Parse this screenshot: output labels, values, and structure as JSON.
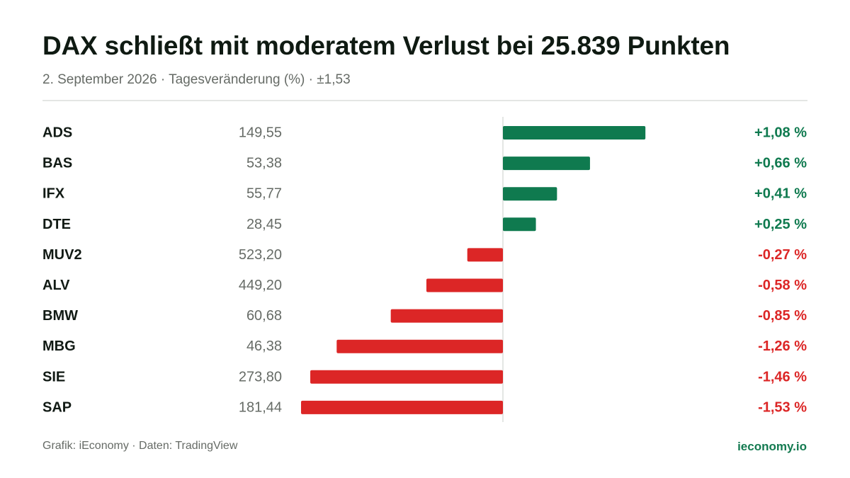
{
  "header": {
    "title": "DAX schließt mit moderatem Verlust bei 25.839 Punkten",
    "subtitle": "2. September 2026 · Tagesveränderung (%) · ±1,53"
  },
  "footer": {
    "source": "Grafik: iEconomy · Daten: TradingView",
    "brand": "ieconomy.io"
  },
  "colors": {
    "positive": "#0f7a4f",
    "negative": "#dc2626",
    "ticker": "#111a14",
    "price": "#666b66",
    "axis": "#dcdedc"
  },
  "chart_data": {
    "type": "bar",
    "orientation": "horizontal",
    "xlim": [
      -1.53,
      1.53
    ],
    "grid": false,
    "legend": "none",
    "rows": [
      {
        "ticker": "ADS",
        "price": "149,55",
        "change": 1.08,
        "label": "+1,08 %"
      },
      {
        "ticker": "BAS",
        "price": "53,38",
        "change": 0.66,
        "label": "+0,66 %"
      },
      {
        "ticker": "IFX",
        "price": "55,77",
        "change": 0.41,
        "label": "+0,41 %"
      },
      {
        "ticker": "DTE",
        "price": "28,45",
        "change": 0.25,
        "label": "+0,25 %"
      },
      {
        "ticker": "MUV2",
        "price": "523,20",
        "change": -0.27,
        "label": "-0,27 %"
      },
      {
        "ticker": "ALV",
        "price": "449,20",
        "change": -0.58,
        "label": "-0,58 %"
      },
      {
        "ticker": "BMW",
        "price": "60,68",
        "change": -0.85,
        "label": "-0,85 %"
      },
      {
        "ticker": "MBG",
        "price": "46,38",
        "change": -1.26,
        "label": "-1,26 %"
      },
      {
        "ticker": "SIE",
        "price": "273,80",
        "change": -1.46,
        "label": "-1,46 %"
      },
      {
        "ticker": "SAP",
        "price": "181,44",
        "change": -1.53,
        "label": "-1,53 %"
      }
    ]
  }
}
